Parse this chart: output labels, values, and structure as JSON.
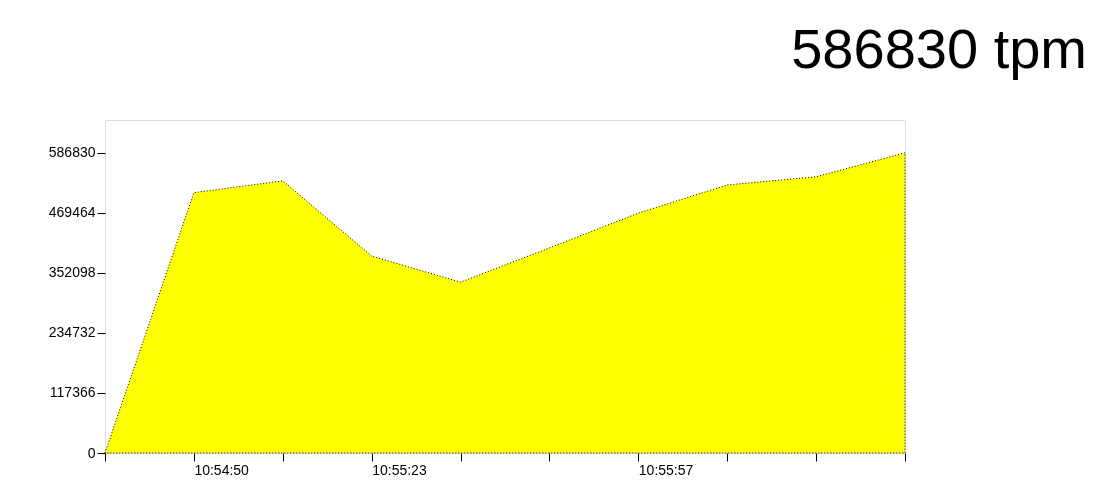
{
  "chart_data": {
    "type": "area",
    "title": "586830 tpm",
    "categories": [
      null,
      "10:54:50",
      null,
      "10:55:23",
      null,
      null,
      "10:55:57",
      null,
      null,
      null
    ],
    "series": [
      {
        "color": "#ffff00",
        "values": [
          0,
          509000,
          532000,
          385000,
          334000,
          401000,
          469000,
          524000,
          540000,
          586830
        ]
      }
    ],
    "ylim": [
      0,
      651000
    ],
    "yticks": [
      0,
      117366,
      234732,
      352098,
      469464,
      586830
    ],
    "grid": false
  }
}
